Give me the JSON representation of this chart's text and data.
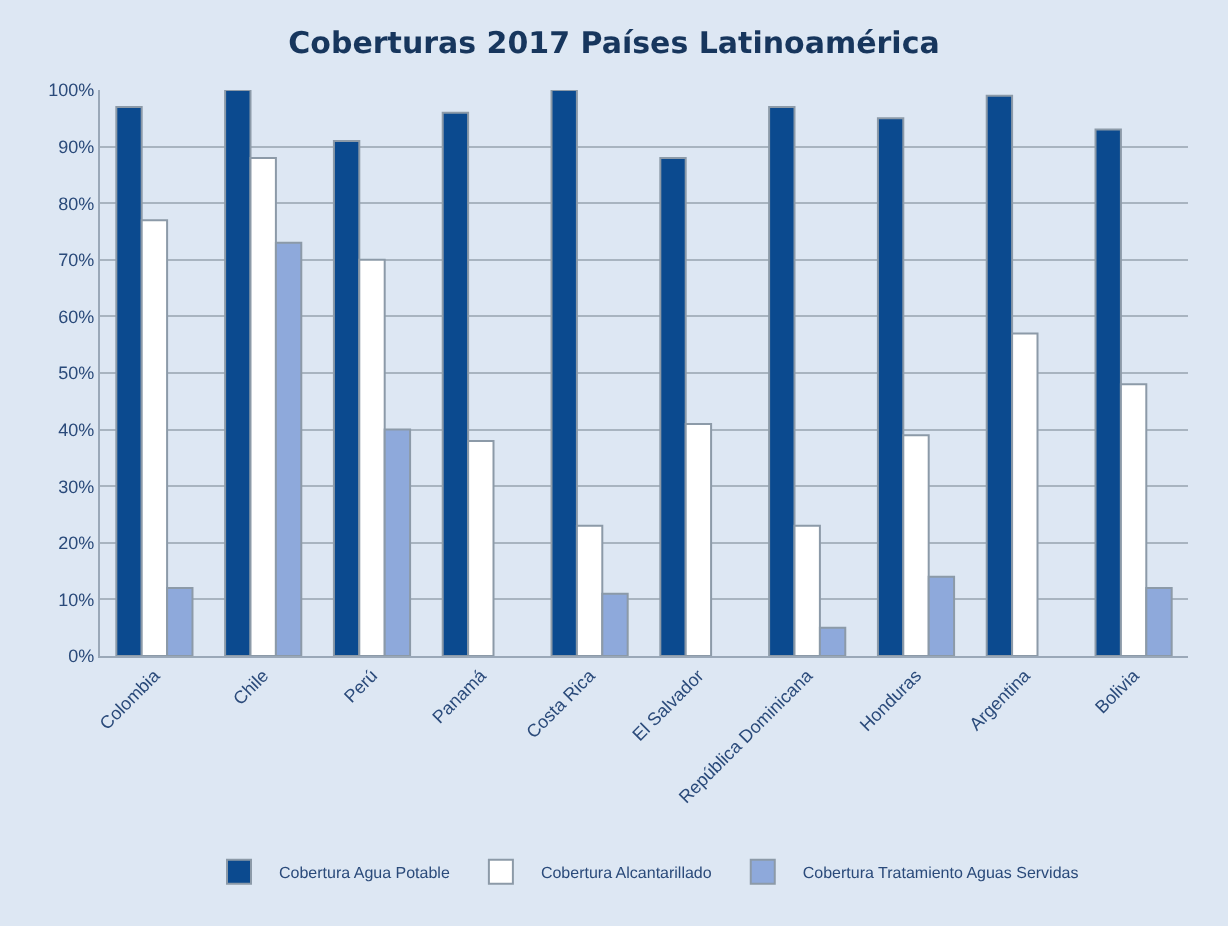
{
  "chart_data": {
    "type": "bar",
    "title": "Coberturas 2017 Países Latinoamérica",
    "categories": [
      "Colombia",
      "Chile",
      "Perú",
      "Panamá",
      "Costa Rica",
      "El Salvador",
      "República Dominicana",
      "Honduras",
      "Argentina",
      "Bolivia"
    ],
    "series": [
      {
        "name": "Cobertura Agua Potable",
        "color": "#0b4a8f",
        "values": [
          97,
          100,
          91,
          96,
          100,
          88,
          97,
          95,
          99,
          93
        ]
      },
      {
        "name": "Cobertura Alcantarillado",
        "color": "#ffffff",
        "values": [
          77,
          88,
          70,
          38,
          23,
          41,
          23,
          39,
          57,
          48
        ]
      },
      {
        "name": "Cobertura Tratamiento Aguas Servidas",
        "color": "#8ea9db",
        "values": [
          12,
          73,
          40,
          null,
          11,
          null,
          5,
          14,
          null,
          12
        ]
      }
    ],
    "ylim": [
      0,
      100
    ],
    "yticks": [
      {
        "value": 0,
        "label": "0%"
      },
      {
        "value": 10,
        "label": "10%"
      },
      {
        "value": 20,
        "label": "20%"
      },
      {
        "value": 30,
        "label": "30%"
      },
      {
        "value": 40,
        "label": "40%"
      },
      {
        "value": 50,
        "label": "50%"
      },
      {
        "value": 60,
        "label": "60%"
      },
      {
        "value": 70,
        "label": "70%"
      },
      {
        "value": 80,
        "label": "80%"
      },
      {
        "value": 90,
        "label": "90%"
      },
      {
        "value": 100,
        "label": "100%"
      }
    ],
    "grid": "y",
    "legend": "bottom"
  }
}
